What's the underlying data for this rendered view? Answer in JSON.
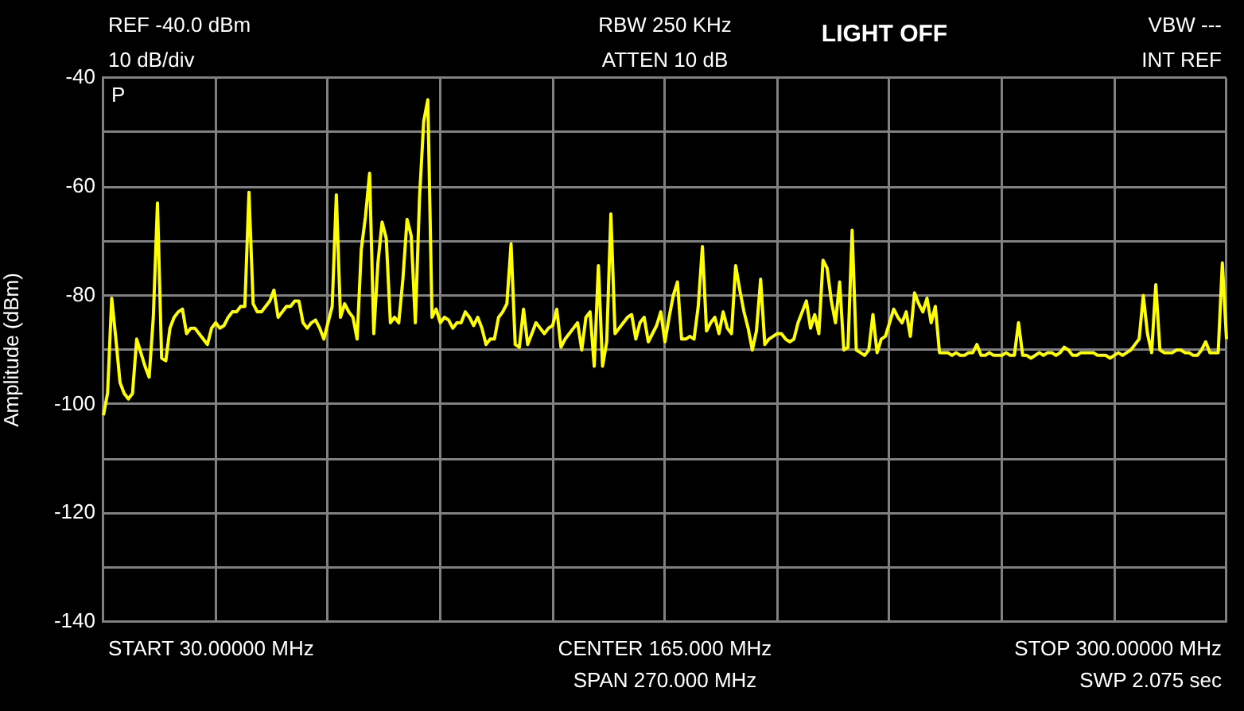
{
  "chart_data": {
    "type": "line",
    "title": "LIGHT OFF",
    "ylabel": "Amplitude (dBm)",
    "annotations": [
      "REF -40.0 dBm",
      "10 dB/div",
      "RBW 250 KHz",
      "ATTEN 10 dB",
      "VBW ---",
      "INT REF",
      "P",
      "START 30.00000 MHz",
      "CENTER 165.000 MHz",
      "SPAN 270.000 MHz",
      "STOP 300.00000 MHz",
      "SWP 2.075 sec"
    ],
    "categories": [
      null,
      null,
      null,
      null,
      null,
      null,
      null,
      null,
      null,
      null,
      null,
      null,
      null,
      null,
      null,
      null,
      null,
      null,
      null,
      null,
      null,
      null,
      null,
      null,
      null,
      null,
      null,
      null,
      null,
      null,
      null,
      null,
      null,
      null,
      null,
      null,
      null,
      null,
      null,
      null,
      null,
      null,
      null,
      null,
      null,
      null,
      null,
      null,
      null,
      null,
      null,
      null,
      null,
      null,
      null,
      null,
      null,
      null,
      null,
      null,
      null,
      null,
      null,
      null,
      null,
      null,
      null,
      null,
      null,
      null,
      null,
      null,
      null,
      null,
      null,
      null,
      null,
      null,
      null,
      null,
      null,
      null,
      null,
      null,
      null,
      null,
      null,
      null,
      null,
      null,
      null,
      null,
      null,
      null,
      null,
      null,
      null,
      null,
      null,
      null,
      null,
      null,
      null,
      null,
      null,
      null,
      null,
      null,
      null,
      null,
      null,
      null,
      null,
      null,
      null,
      null,
      null,
      null,
      null,
      null,
      null,
      null,
      null,
      null,
      null,
      null,
      null,
      null,
      null,
      null,
      null,
      null,
      null,
      null,
      null,
      null,
      null,
      null,
      null,
      null,
      null,
      null,
      null,
      null,
      null,
      null,
      null,
      null,
      null,
      null,
      null,
      null,
      null,
      null,
      null,
      null,
      null,
      null,
      null,
      null,
      null,
      null,
      null,
      null,
      null,
      null,
      null,
      null,
      null,
      null,
      null,
      null,
      null,
      null,
      null,
      null,
      null,
      null,
      null,
      null,
      null,
      null,
      null,
      null,
      null,
      null,
      null,
      null,
      null,
      null,
      null,
      null,
      null,
      null,
      null,
      null,
      null,
      null,
      null,
      null,
      null,
      null,
      null,
      null,
      null,
      null,
      null,
      null,
      null,
      null,
      null,
      null,
      null,
      null,
      null,
      null,
      null,
      null,
      null,
      null,
      null,
      null,
      null,
      null,
      null,
      null,
      null,
      null,
      null,
      null,
      null,
      null,
      null,
      null,
      null,
      null,
      null,
      null,
      null,
      null,
      null,
      null,
      null,
      null,
      null,
      null,
      null,
      null,
      null,
      null,
      null,
      null,
      null,
      null,
      null,
      null,
      null,
      null,
      null,
      null,
      null,
      null,
      null,
      null,
      null,
      null,
      null,
      null,
      null,
      null,
      null
    ],
    "values": [
      -102,
      -98,
      -80.5,
      -88,
      -96,
      -98,
      -99,
      -98,
      -88,
      -90.5,
      -93,
      -95,
      -84,
      -63,
      -91.5,
      -92,
      -86,
      -84,
      -83,
      -82.5,
      -87,
      -86,
      -86,
      -87,
      -88,
      -89,
      -86,
      -85,
      -86,
      -85.5,
      -84,
      -83,
      -83,
      -82,
      -82,
      -61,
      -81.5,
      -83,
      -83,
      -82,
      -81,
      -79,
      -84,
      -83,
      -82,
      -82,
      -81,
      -81,
      -85,
      -86,
      -85,
      -84.5,
      -86,
      -88,
      -85,
      -82,
      -61.5,
      -84,
      -81.5,
      -83,
      -84,
      -88,
      -71.5,
      -65.5,
      -57.5,
      -87,
      -74,
      -66.5,
      -69.5,
      -85,
      -84,
      -85,
      -77,
      -66,
      -69,
      -85,
      -62,
      -48,
      -44,
      -84,
      -82.5,
      -85,
      -84,
      -84.5,
      -86,
      -85,
      -85,
      -83,
      -84,
      -85.5,
      -84,
      -86,
      -89,
      -88,
      -88,
      -84,
      -83,
      -81.5,
      -70.5,
      -89,
      -89.5,
      -82.5,
      -89,
      -87,
      -85,
      -86,
      -87,
      -86,
      -85.5,
      -82.5,
      -89.5,
      -88,
      -87,
      -86,
      -85,
      -90,
      -84,
      -83,
      -93,
      -74.5,
      -93,
      -88.5,
      -65,
      -87,
      -86,
      -85,
      -84,
      -83.5,
      -88,
      -85,
      -84,
      -88.5,
      -87,
      -85.5,
      -83,
      -88.5,
      -84,
      -80,
      -77.5,
      -88,
      -88,
      -87.5,
      -88,
      -82,
      -71,
      -86.5,
      -85,
      -84,
      -87,
      -83,
      -86,
      -87,
      -74.5,
      -79,
      -83,
      -86,
      -90,
      -86.5,
      -77,
      -89,
      -88,
      -87.5,
      -87,
      -87,
      -88,
      -88.5,
      -88,
      -85,
      -83,
      -81,
      -86,
      -83.5,
      -87,
      -73.5,
      -75,
      -81,
      -85,
      -77.5,
      -90,
      -89.5,
      -68,
      -90,
      -90.5,
      -91,
      -90,
      -83.5,
      -90.5,
      -88,
      -87.5,
      -85,
      -82.5,
      -84,
      -85,
      -83,
      -87.5,
      -79.5,
      -81.5,
      -83,
      -80.5,
      -85,
      -82,
      -90.5,
      -90.5,
      -90.5,
      -91,
      -90.5,
      -91,
      -91,
      -90.5,
      -90.5,
      -89,
      -91,
      -91,
      -90.5,
      -91,
      -91,
      -91,
      -90.5,
      -91,
      -91,
      -85,
      -91,
      -91,
      -91.5,
      -91,
      -90.5,
      -91,
      -90.5,
      -90.5,
      -91,
      -90.5,
      -89.5,
      -90,
      -91,
      -91,
      -90.5,
      -90.5,
      -90.5,
      -90.5,
      -91,
      -91,
      -91,
      -91.5,
      -91,
      -90.5,
      -91,
      -90.5,
      -90,
      -89,
      -88,
      -80,
      -87,
      -90.5,
      -78,
      -90,
      -90.5,
      -90.5,
      -90.5,
      -90,
      -90,
      -90.5,
      -90.5,
      -91,
      -91,
      -90,
      -88.5,
      -90.5,
      -90.5,
      -90.5,
      -74,
      -88
    ],
    "color": "#ffff00",
    "ylim": [
      -140,
      -40
    ],
    "yticks": [
      -140,
      {
        "value": -130,
        "label": null
      },
      -120,
      {
        "value": -110,
        "label": null
      },
      -100,
      {
        "value": -90,
        "label": null
      },
      -80,
      {
        "value": -70,
        "label": null
      },
      -60,
      {
        "value": -50,
        "label": null
      },
      -40
    ],
    "grid": true,
    "legend": false,
    "marker": "none",
    "tick_labels": "y"
  }
}
